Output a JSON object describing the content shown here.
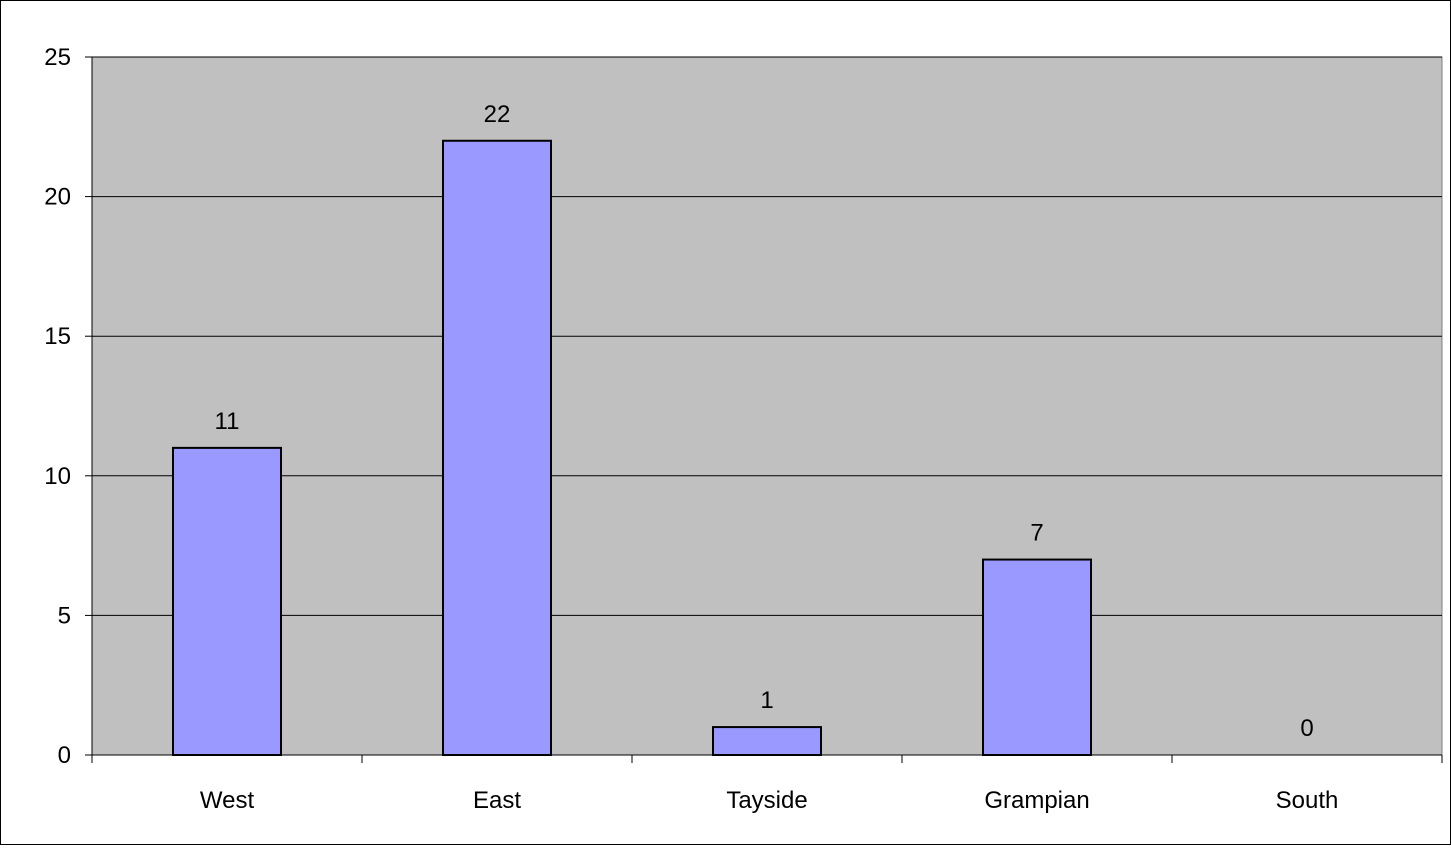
{
  "chart_data": {
    "type": "bar",
    "title": "",
    "xlabel": "",
    "ylabel": "",
    "categories": [
      "West",
      "East",
      "Tayside",
      "Grampian",
      "South"
    ],
    "values": [
      11,
      22,
      1,
      7,
      0
    ],
    "data_labels": [
      "11",
      "22",
      "1",
      "7",
      "0"
    ],
    "ylim": [
      0,
      25
    ],
    "yticks": [
      0,
      5,
      10,
      15,
      20,
      25
    ],
    "ytick_labels": [
      "0",
      "5",
      "10",
      "15",
      "20",
      "25"
    ],
    "grid": true,
    "legend": "none",
    "colors": {
      "bar_fill": "#9999ff",
      "bar_stroke": "#000000",
      "plot_background": "#c0c0c0",
      "gridline": "#000000"
    }
  }
}
